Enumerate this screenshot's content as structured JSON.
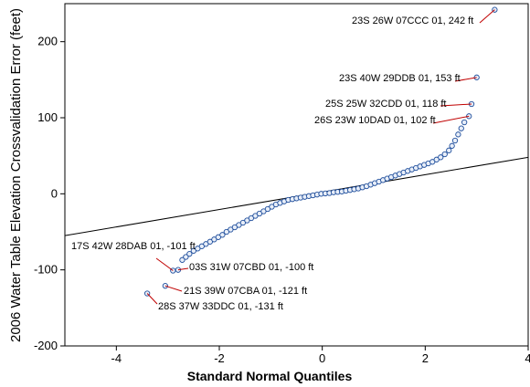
{
  "chart_data": {
    "type": "scatter",
    "title": "",
    "xlabel": "Standard Normal Quantiles",
    "ylabel": "2006 Water Table Elevation Crossvalidation Error (feet)",
    "xlim": [
      -5,
      4
    ],
    "ylim": [
      -200,
      250
    ],
    "xticks": [
      -4,
      -2,
      0,
      2,
      4
    ],
    "yticks": [
      -200,
      -100,
      0,
      100,
      200
    ],
    "grid": false,
    "legend": "none",
    "colors": {
      "point": "#1f4e9c",
      "line": "#000000",
      "leader": "#c00000"
    },
    "reference_line": {
      "x": [
        -5,
        4
      ],
      "y": [
        -55,
        48
      ]
    },
    "series": [
      {
        "values": [
          {
            "x": -3.4,
            "y": -131
          },
          {
            "x": -3.05,
            "y": -121
          },
          {
            "x": -2.9,
            "y": -101
          },
          {
            "x": -2.8,
            "y": -100
          },
          {
            "x": -2.72,
            "y": -87
          },
          {
            "x": -2.65,
            "y": -83
          },
          {
            "x": -2.58,
            "y": -79
          },
          {
            "x": -2.5,
            "y": -75
          },
          {
            "x": -2.42,
            "y": -72
          },
          {
            "x": -2.34,
            "y": -69
          },
          {
            "x": -2.26,
            "y": -66
          },
          {
            "x": -2.18,
            "y": -63
          },
          {
            "x": -2.1,
            "y": -60
          },
          {
            "x": -2.02,
            "y": -57
          },
          {
            "x": -1.94,
            "y": -54
          },
          {
            "x": -1.86,
            "y": -50
          },
          {
            "x": -1.78,
            "y": -47
          },
          {
            "x": -1.7,
            "y": -44
          },
          {
            "x": -1.62,
            "y": -41
          },
          {
            "x": -1.54,
            "y": -38
          },
          {
            "x": -1.46,
            "y": -35
          },
          {
            "x": -1.38,
            "y": -32
          },
          {
            "x": -1.3,
            "y": -29
          },
          {
            "x": -1.22,
            "y": -26
          },
          {
            "x": -1.14,
            "y": -23
          },
          {
            "x": -1.06,
            "y": -20
          },
          {
            "x": -0.98,
            "y": -17
          },
          {
            "x": -0.9,
            "y": -14
          },
          {
            "x": -0.82,
            "y": -12
          },
          {
            "x": -0.74,
            "y": -10
          },
          {
            "x": -0.66,
            "y": -8
          },
          {
            "x": -0.58,
            "y": -7
          },
          {
            "x": -0.5,
            "y": -6
          },
          {
            "x": -0.42,
            "y": -5
          },
          {
            "x": -0.34,
            "y": -4
          },
          {
            "x": -0.26,
            "y": -3
          },
          {
            "x": -0.18,
            "y": -2
          },
          {
            "x": -0.1,
            "y": -1
          },
          {
            "x": -0.02,
            "y": 0
          },
          {
            "x": 0.06,
            "y": 0.5
          },
          {
            "x": 0.14,
            "y": 1
          },
          {
            "x": 0.22,
            "y": 2
          },
          {
            "x": 0.3,
            "y": 2.5
          },
          {
            "x": 0.38,
            "y": 3
          },
          {
            "x": 0.46,
            "y": 4
          },
          {
            "x": 0.54,
            "y": 5
          },
          {
            "x": 0.62,
            "y": 6
          },
          {
            "x": 0.7,
            "y": 7
          },
          {
            "x": 0.78,
            "y": 8.5
          },
          {
            "x": 0.86,
            "y": 10
          },
          {
            "x": 0.94,
            "y": 12
          },
          {
            "x": 1.02,
            "y": 14
          },
          {
            "x": 1.1,
            "y": 16
          },
          {
            "x": 1.18,
            "y": 18
          },
          {
            "x": 1.26,
            "y": 20
          },
          {
            "x": 1.34,
            "y": 22
          },
          {
            "x": 1.42,
            "y": 24
          },
          {
            "x": 1.5,
            "y": 26
          },
          {
            "x": 1.58,
            "y": 28
          },
          {
            "x": 1.66,
            "y": 30
          },
          {
            "x": 1.74,
            "y": 32
          },
          {
            "x": 1.82,
            "y": 34
          },
          {
            "x": 1.9,
            "y": 36
          },
          {
            "x": 1.98,
            "y": 38
          },
          {
            "x": 2.06,
            "y": 40
          },
          {
            "x": 2.14,
            "y": 42
          },
          {
            "x": 2.22,
            "y": 45
          },
          {
            "x": 2.3,
            "y": 48
          },
          {
            "x": 2.38,
            "y": 52
          },
          {
            "x": 2.46,
            "y": 57
          },
          {
            "x": 2.52,
            "y": 63
          },
          {
            "x": 2.58,
            "y": 70
          },
          {
            "x": 2.64,
            "y": 78
          },
          {
            "x": 2.7,
            "y": 86
          },
          {
            "x": 2.76,
            "y": 94
          },
          {
            "x": 2.85,
            "y": 102
          },
          {
            "x": 2.9,
            "y": 118
          },
          {
            "x": 3.0,
            "y": 153
          },
          {
            "x": 3.35,
            "y": 242
          }
        ]
      }
    ],
    "annotations": [
      {
        "text": "23S 26W 07CCC 01, 242 ft",
        "x": 3.35,
        "y": 242
      },
      {
        "text": "23S 40W 29DDB 01, 153 ft",
        "x": 3.0,
        "y": 153
      },
      {
        "text": "25S 25W 32CDD 01, 118 ft",
        "x": 2.9,
        "y": 118
      },
      {
        "text": "26S 23W 10DAD 01, 102 ft",
        "x": 2.85,
        "y": 102
      },
      {
        "text": "17S 42W 28DAB 01, -101 ft",
        "x": -2.9,
        "y": -101
      },
      {
        "text": "03S 31W 07CBD 01, -100 ft",
        "x": -2.8,
        "y": -100
      },
      {
        "text": "21S 39W 07CBA 01, -121 ft",
        "x": -3.05,
        "y": -121
      },
      {
        "text": "28S 37W 33DDC 01, -131 ft",
        "x": -3.4,
        "y": -131
      }
    ]
  }
}
